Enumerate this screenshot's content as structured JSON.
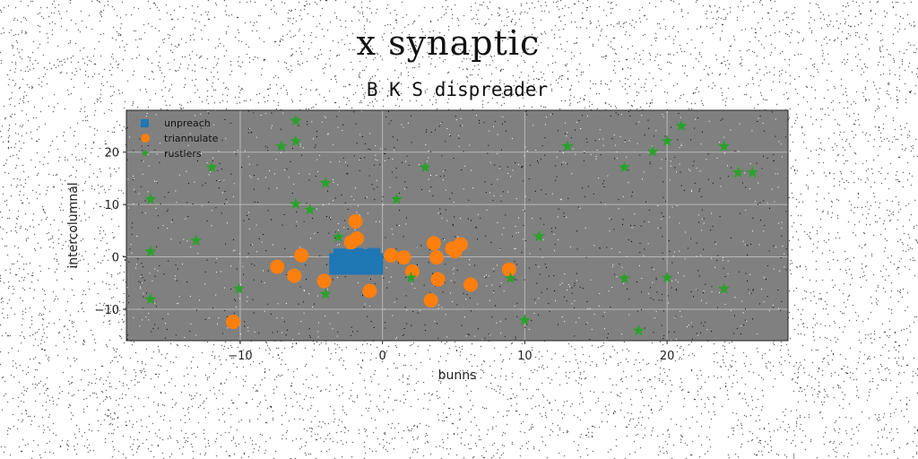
{
  "figure": {
    "suptitle": "x synaptic",
    "title": "B K S dispreader"
  },
  "colors": {
    "background": "#ffffff",
    "plot_background": "#808080",
    "grid": "#b8b8b8",
    "unpreach": "#1f77b4",
    "triannulate": "#ff7f0e",
    "rustlers": "#2ca02c"
  },
  "chart_data": {
    "type": "scatter",
    "title": "B K S dispreader",
    "xlabel": "bunns",
    "ylabel": "intercolumnal",
    "xlim": [
      -18,
      28.5
    ],
    "ylim": [
      -16,
      28
    ],
    "xticks": [
      -10,
      0,
      10,
      20
    ],
    "yticks": [
      -10,
      0,
      10,
      20
    ],
    "xtick_labels": [
      "−10",
      "0",
      "10",
      "20"
    ],
    "ytick_labels": [
      "−10",
      "0",
      "10",
      "20"
    ],
    "grid": true,
    "legend_position": "top-left",
    "series": [
      {
        "name": "unpreach",
        "marker": "square",
        "points": [
          [
            -3.3,
            -0.5
          ],
          [
            -2.7,
            -0.5
          ],
          [
            -2.1,
            -0.5
          ],
          [
            -1.5,
            -0.5
          ],
          [
            -0.9,
            -0.5
          ],
          [
            -0.4,
            -0.5
          ],
          [
            -3.3,
            -2.2
          ],
          [
            -2.7,
            -2.2
          ],
          [
            -2.1,
            -2.2
          ],
          [
            -1.5,
            -2.2
          ],
          [
            -0.9,
            -2.2
          ],
          [
            -0.4,
            -2.2
          ],
          [
            -3.0,
            -1.3
          ],
          [
            -2.3,
            -1.3
          ],
          [
            -1.6,
            -1.3
          ],
          [
            -1.0,
            -1.3
          ],
          [
            -0.5,
            -1.3
          ],
          [
            -3.0,
            0.4
          ],
          [
            -2.4,
            0.2
          ],
          [
            -1.8,
            0.5
          ],
          [
            -1.2,
            0.3
          ],
          [
            -0.6,
            0.5
          ]
        ]
      },
      {
        "name": "triannulate",
        "marker": "circle",
        "points": [
          [
            -1.9,
            6.8
          ],
          [
            -1.8,
            3.5
          ],
          [
            -2.2,
            2.8
          ],
          [
            -5.7,
            0.3
          ],
          [
            -7.4,
            -1.9
          ],
          [
            -6.2,
            -3.6
          ],
          [
            -4.1,
            -4.6
          ],
          [
            -0.9,
            -6.5
          ],
          [
            -10.5,
            -12.4
          ],
          [
            0.6,
            0.3
          ],
          [
            1.5,
            -0.1
          ],
          [
            2.1,
            -2.8
          ],
          [
            3.6,
            2.6
          ],
          [
            3.8,
            -0.1
          ],
          [
            3.9,
            -4.3
          ],
          [
            3.4,
            -8.3
          ],
          [
            4.9,
            1.6
          ],
          [
            5.1,
            1.1
          ],
          [
            5.5,
            2.4
          ],
          [
            6.2,
            -5.3
          ],
          [
            8.9,
            -2.4
          ]
        ]
      },
      {
        "name": "rustlers",
        "marker": "star",
        "points": [
          [
            -6.1,
            26.0
          ],
          [
            -6.1,
            22.1
          ],
          [
            -7.1,
            21.1
          ],
          [
            -12.0,
            17.1
          ],
          [
            -4.0,
            14.1
          ],
          [
            -16.3,
            11.0
          ],
          [
            -6.1,
            10.1
          ],
          [
            -5.1,
            9.0
          ],
          [
            -13.1,
            3.1
          ],
          [
            -3.1,
            3.8
          ],
          [
            -16.3,
            1.0
          ],
          [
            -10.1,
            -6.1
          ],
          [
            -4.0,
            -7.1
          ],
          [
            -16.3,
            -8.1
          ],
          [
            1.0,
            11.0
          ],
          [
            3.0,
            17.1
          ],
          [
            2.0,
            -4.0
          ],
          [
            9.0,
            -4.1
          ],
          [
            10.0,
            -12.1
          ],
          [
            11.0,
            3.9
          ],
          [
            13.0,
            21.1
          ],
          [
            17.0,
            17.1
          ],
          [
            17.0,
            -4.1
          ],
          [
            18.0,
            -14.1
          ],
          [
            19.0,
            20.1
          ],
          [
            20.0,
            22.1
          ],
          [
            20.0,
            -4.0
          ],
          [
            21.0,
            25.0
          ],
          [
            24.0,
            21.1
          ],
          [
            24.0,
            -6.1
          ],
          [
            25.0,
            16.1
          ],
          [
            26.0,
            16.1
          ]
        ]
      }
    ]
  }
}
